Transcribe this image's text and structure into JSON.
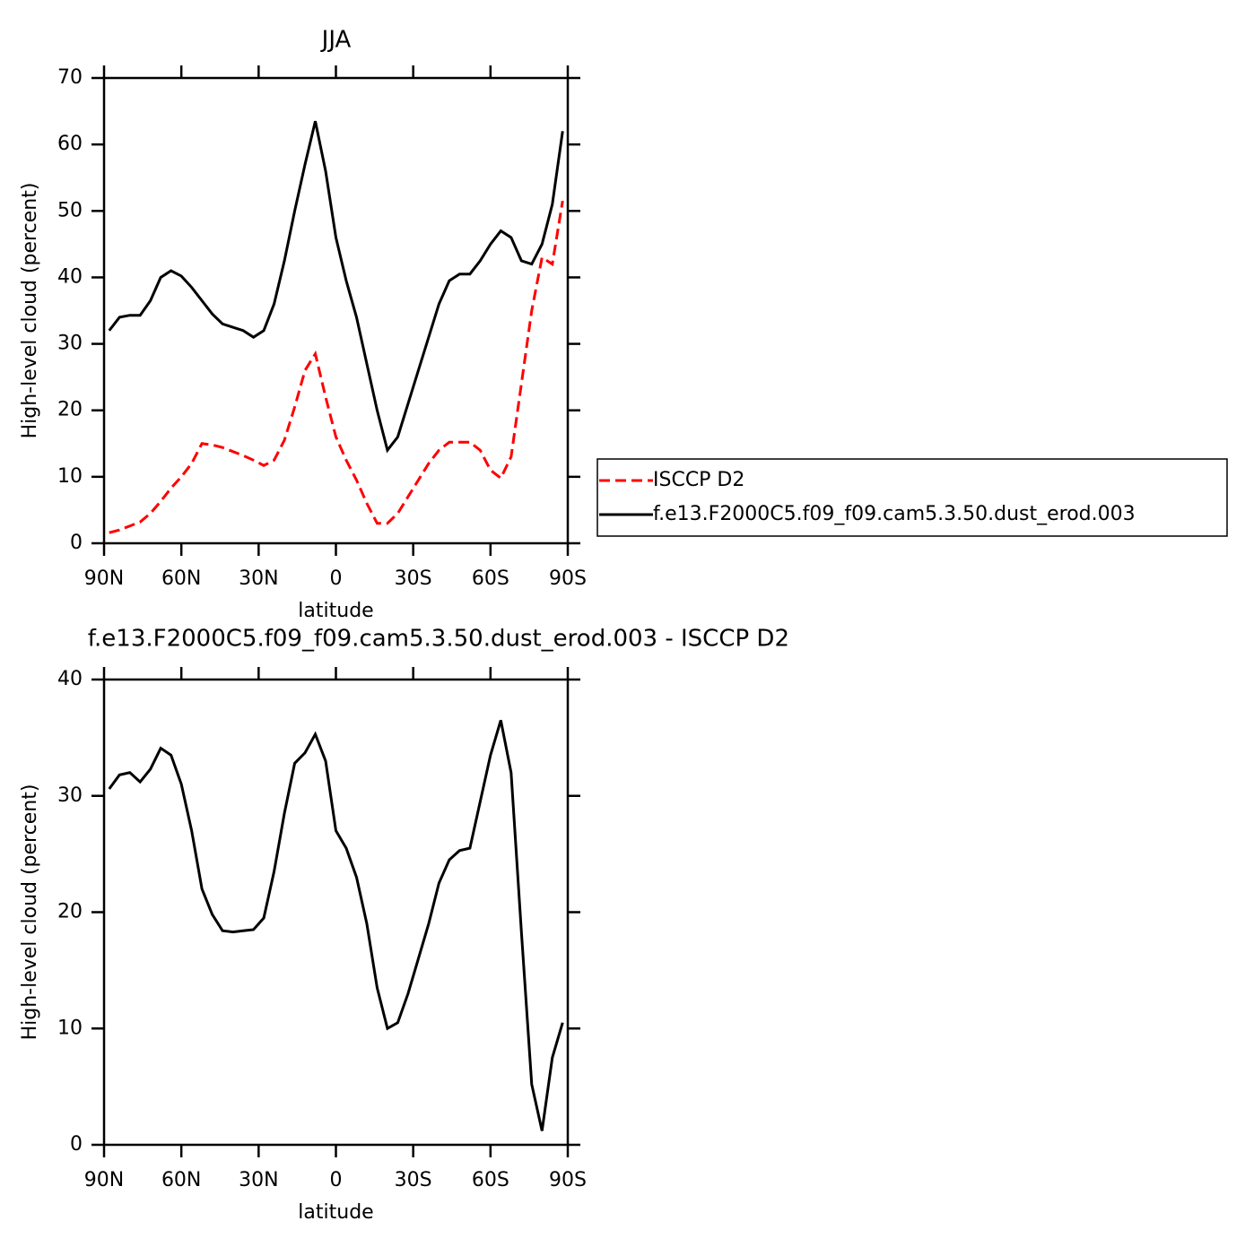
{
  "chart_data": [
    {
      "type": "line",
      "title": "JJA",
      "xlabel": "latitude",
      "ylabel": "High-level cloud (percent)",
      "x": [
        88,
        84,
        80,
        76,
        72,
        68,
        64,
        60,
        56,
        52,
        48,
        44,
        40,
        36,
        32,
        28,
        24,
        20,
        16,
        12,
        8,
        4,
        0,
        -4,
        -8,
        -12,
        -16,
        -20,
        -24,
        -28,
        -32,
        -36,
        -40,
        -44,
        -48,
        -52,
        -56,
        -60,
        -64,
        -68,
        -72,
        -76,
        -80,
        -84,
        -88
      ],
      "series": [
        {
          "name": "ISCCP D2",
          "color": "#ff0000",
          "linestyle": "dashed",
          "values": [
            1.6,
            2.0,
            2.6,
            3.2,
            4.5,
            6.3,
            8.3,
            10.0,
            12.0,
            15.0,
            14.8,
            14.4,
            13.8,
            13.2,
            12.5,
            11.7,
            12.5,
            15.5,
            20.5,
            26.0,
            28.5,
            22.0,
            16.0,
            12.5,
            9.5,
            6.0,
            3.0,
            3.0,
            4.5,
            7.0,
            9.5,
            12.0,
            14.0,
            15.2,
            15.2,
            15.2,
            14.0,
            11.0,
            9.8,
            13.0,
            24.0,
            35.0,
            43.0,
            42.0,
            51.5
          ]
        },
        {
          "name": "f.e13.F2000C5.f09_f09.cam5.3.50.dust_erod.003",
          "color": "#000000",
          "linestyle": "solid",
          "values": [
            32.0,
            34.0,
            34.3,
            34.3,
            36.5,
            40.0,
            41.0,
            40.2,
            38.5,
            36.5,
            34.5,
            33.0,
            32.5,
            32.0,
            31.0,
            32.0,
            36.0,
            42.5,
            50.0,
            57.0,
            63.5,
            56.0,
            46.0,
            39.5,
            34.0,
            27.0,
            20.0,
            14.0,
            16.0,
            21.0,
            26.0,
            31.0,
            36.0,
            39.5,
            40.5,
            40.5,
            42.5,
            45.0,
            47.0,
            46.0,
            42.5,
            42.0,
            45.0,
            51.0,
            62.0
          ]
        }
      ],
      "xlim": [
        90,
        -90
      ],
      "xticks": [
        {
          "value": 90,
          "label": "90N"
        },
        {
          "value": 60,
          "label": "60N"
        },
        {
          "value": 30,
          "label": "30N"
        },
        0,
        {
          "value": -30,
          "label": "30S"
        },
        {
          "value": -60,
          "label": "60S"
        },
        {
          "value": -90,
          "label": "90S"
        }
      ],
      "ylim": [
        0,
        70
      ],
      "yticks": [
        0,
        10,
        20,
        30,
        40,
        50,
        60,
        70
      ],
      "legend": "right"
    },
    {
      "type": "line",
      "title": "f.e13.F2000C5.f09_f09.cam5.3.50.dust_erod.003 - ISCCP D2",
      "xlabel": "latitude",
      "ylabel": "High-level cloud (percent)",
      "x": [
        88,
        84,
        80,
        76,
        72,
        68,
        64,
        60,
        56,
        52,
        48,
        44,
        40,
        36,
        32,
        28,
        24,
        20,
        16,
        12,
        8,
        4,
        0,
        -4,
        -8,
        -12,
        -16,
        -20,
        -24,
        -28,
        -32,
        -36,
        -40,
        -44,
        -48,
        -52,
        -56,
        -60,
        -64,
        -68,
        -72,
        -76,
        -80,
        -84,
        -88
      ],
      "series": [
        {
          "color": "#000000",
          "linestyle": "solid",
          "values": [
            30.6,
            31.8,
            32.0,
            31.2,
            32.3,
            34.1,
            33.5,
            31.0,
            27.0,
            22.0,
            19.8,
            18.4,
            18.3,
            18.4,
            18.5,
            19.5,
            23.5,
            28.5,
            32.8,
            33.7,
            35.3,
            33.0,
            27.0,
            25.5,
            23.0,
            19.0,
            13.5,
            10.0,
            10.5,
            13.0,
            16.0,
            19.0,
            22.5,
            24.5,
            25.3,
            25.5,
            29.5,
            33.5,
            36.5,
            32.0,
            18.3,
            5.2,
            1.2,
            7.5,
            10.5
          ]
        }
      ],
      "xlim": [
        90,
        -90
      ],
      "xticks": [
        {
          "value": 90,
          "label": "90N"
        },
        {
          "value": 60,
          "label": "60N"
        },
        {
          "value": 30,
          "label": "30N"
        },
        0,
        {
          "value": -30,
          "label": "30S"
        },
        {
          "value": -60,
          "label": "60S"
        },
        {
          "value": -90,
          "label": "90S"
        }
      ],
      "ylim": [
        0,
        40
      ],
      "yticks": [
        0,
        10,
        20,
        30,
        40
      ]
    }
  ]
}
